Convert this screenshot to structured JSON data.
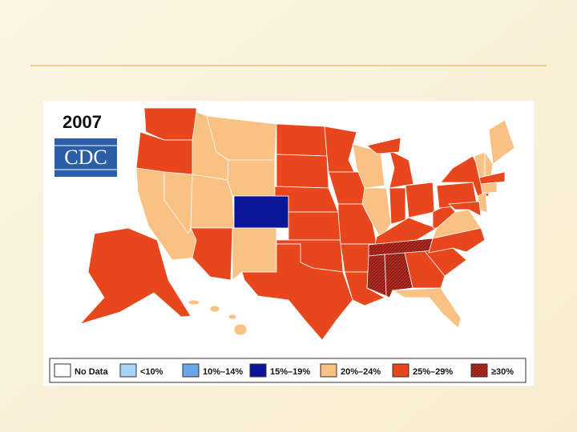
{
  "map": {
    "year": "2007",
    "logo": "CDC",
    "legend": [
      {
        "label": "No Data",
        "color": "#ffffff"
      },
      {
        "label": "<10%",
        "color": "#a8d4f6"
      },
      {
        "label": "10%–14%",
        "color": "#6aa5e6"
      },
      {
        "label": "15%–19%",
        "color": "#0a1696"
      },
      {
        "label": "20%–24%",
        "color": "#f9c184"
      },
      {
        "label": "25%–29%",
        "color": "#e8461c"
      },
      {
        "label": "≥30%",
        "color": "#8e1c14"
      }
    ]
  }
}
